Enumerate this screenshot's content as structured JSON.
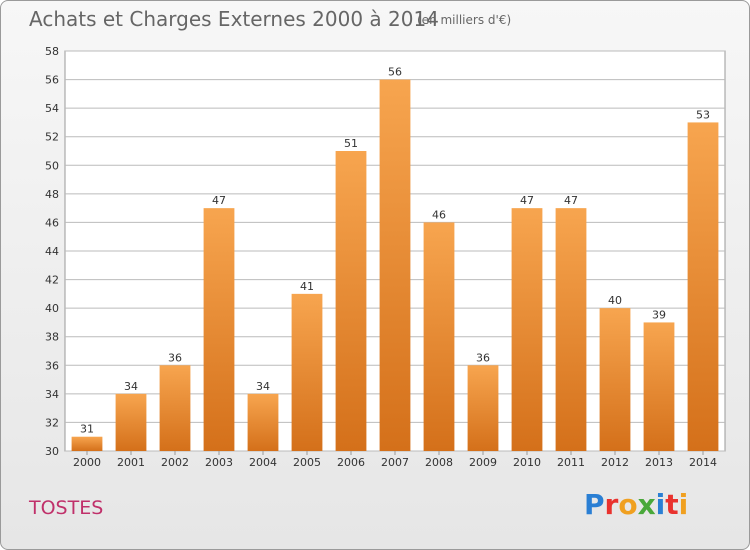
{
  "header": {
    "title": "Achats et Charges Externes 2000 à 2014",
    "subtitle": "(en milliers d'€)"
  },
  "footer": {
    "commune": "TOSTES",
    "logo_text": "Proxiti",
    "logo_colors": [
      "#2a7fd4",
      "#e9322e",
      "#f0a020",
      "#49a83a",
      "#2a7fd4",
      "#e9322e",
      "#f0a020"
    ]
  },
  "chart_data": {
    "type": "bar",
    "title": "Achats et Charges Externes 2000 à 2014",
    "subtitle": "(en milliers d'€)",
    "xlabel": "",
    "ylabel": "",
    "categories": [
      "2000",
      "2001",
      "2002",
      "2003",
      "2004",
      "2005",
      "2006",
      "2007",
      "2008",
      "2009",
      "2010",
      "2011",
      "2012",
      "2013",
      "2014"
    ],
    "values": [
      31,
      34,
      36,
      47,
      34,
      41,
      51,
      56,
      46,
      36,
      47,
      47,
      40,
      39,
      53
    ],
    "ylim": [
      30,
      58
    ],
    "yticks": [
      30,
      32,
      34,
      36,
      38,
      40,
      42,
      44,
      46,
      48,
      50,
      52,
      54,
      56,
      58
    ],
    "grid": true,
    "bar_color_top": "#f7a54f",
    "bar_color_bottom": "#d4701a",
    "grid_color": "#bbbbbb",
    "plot_background": "#ffffff"
  }
}
